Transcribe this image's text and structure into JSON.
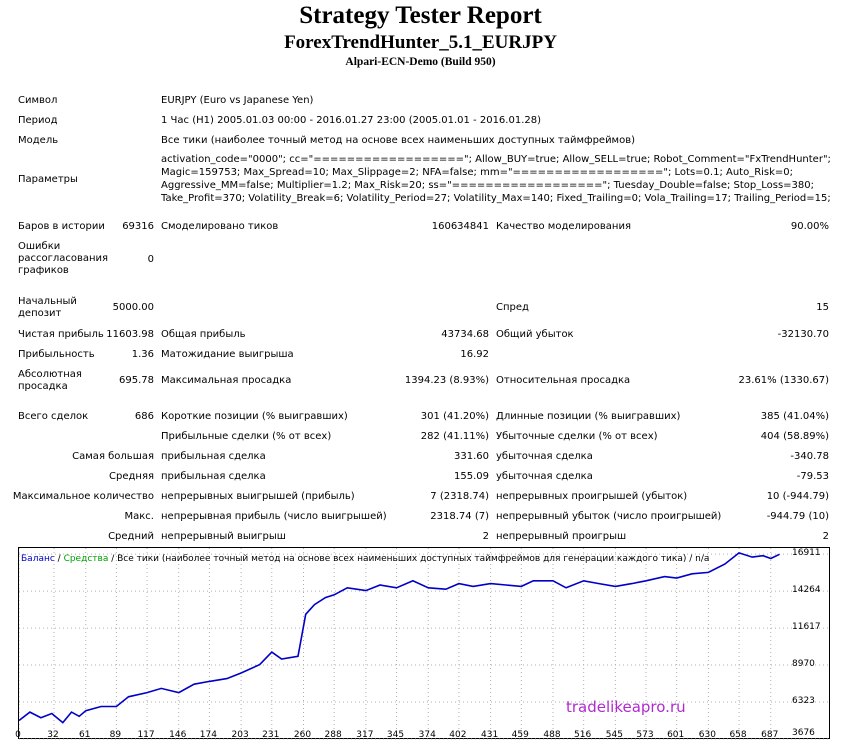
{
  "header": {
    "title": "Strategy Tester Report",
    "expert": "ForexTrendHunter_5.1_EURJPY",
    "server": "Alpari-ECN-Demo (Build 950)"
  },
  "info": {
    "symbol_label": "Символ",
    "symbol_value": "EURJPY (Euro vs Japanese Yen)",
    "period_label": "Период",
    "period_value": "1 Час (H1) 2005.01.03 00:00 - 2016.01.27 23:00 (2005.01.01 - 2016.01.28)",
    "model_label": "Модель",
    "model_value": "Все тики (наиболее точный метод на основе всех наименьших доступных таймфреймов)",
    "params_label": "Параметры",
    "params_lines": [
      "activation_code=\"0000\"; cc=\"==================\"; Allow_BUY=true; Allow_SELL=true; Robot_Comment=\"FxTrendHunter\";",
      "Magic=159753; Max_Spread=10; Max_Slippage=2; NFA=false; mm=\"==================\"; Lots=0.1; Auto_Risk=0;",
      "Aggressive_MM=false; Multiplier=1.2; Max_Risk=20; ss=\"==================\"; Tuesday_Double=false; Stop_Loss=380;",
      "Take_Profit=370; Volatility_Break=6; Volatility_Period=27; Volatility_Max=140; Fixed_Trailing=0; Vola_Trailing=17; Trailing_Period=15;"
    ]
  },
  "stats": {
    "bars_label": "Баров в истории",
    "bars_value": "69316",
    "ticks_label": "Смоделировано тиков",
    "ticks_value": "160634841",
    "quality_label": "Качество моделирования",
    "quality_value": "90.00%",
    "mismatch_label": "Ошибки рассогласования графиков",
    "mismatch_value": "0",
    "deposit_label": "Начальный депозит",
    "deposit_value": "5000.00",
    "spread_label": "Спред",
    "spread_value": "15",
    "net_label": "Чистая прибыль",
    "net_value": "11603.98",
    "gross_profit_label": "Общая прибыль",
    "gross_profit_value": "43734.68",
    "gross_loss_label": "Общий убыток",
    "gross_loss_value": "-32130.70",
    "pf_label": "Прибыльность",
    "pf_value": "1.36",
    "payoff_label": "Матожидание выигрыша",
    "payoff_value": "16.92",
    "abs_dd_label": "Абсолютная просадка",
    "abs_dd_value": "695.78",
    "max_dd_label": "Максимальная просадка",
    "max_dd_value": "1394.23 (8.93%)",
    "rel_dd_label": "Относительная просадка",
    "rel_dd_value": "23.61% (1330.67)",
    "trades_label": "Всего сделок",
    "trades_value": "686",
    "short_label": "Короткие позиции (% выигравших)",
    "short_value": "301 (41.20%)",
    "long_label": "Длинные позиции (% выигравших)",
    "long_value": "385 (41.04%)",
    "profit_trades_label": "Прибыльные сделки (% от всех)",
    "profit_trades_value": "282 (41.11%)",
    "loss_trades_label": "Убыточные сделки (% от всех)",
    "loss_trades_value": "404 (58.89%)",
    "largest_label": "Самая большая",
    "largest_profit_label": "прибыльная сделка",
    "largest_profit_value": "331.60",
    "largest_loss_label": "убыточная сделка",
    "largest_loss_value": "-340.78",
    "average_label": "Средняя",
    "average_profit_label": "прибыльная сделка",
    "average_profit_value": "155.09",
    "average_loss_label": "убыточная сделка",
    "average_loss_value": "-79.53",
    "max_cons_label": "Максимальное количество",
    "max_cons_wins_label": "непрерывных выигрышей (прибыль)",
    "max_cons_wins_value": "7 (2318.74)",
    "max_cons_losses_label": "непрерывных проигрышей (убыток)",
    "max_cons_losses_value": "10 (-944.79)",
    "max_label": "Макс.",
    "max_cons_profit_label": "непрерывная прибыль (число выигрышей)",
    "max_cons_profit_value": "2318.74 (7)",
    "max_cons_loss_label": "непрерывный убыток (число проигрышей)",
    "max_cons_loss_value": "-944.79 (10)",
    "avg_label": "Средний",
    "avg_cons_wins_label": "непрерывный выигрыш",
    "avg_cons_wins_value": "2",
    "avg_cons_losses_label": "непрерывный проигрыш",
    "avg_cons_losses_value": "2"
  },
  "chart_legend": {
    "balance": "Баланс",
    "sep1": " / ",
    "equity": "Средства",
    "sep2": " / ",
    "rest": "Все тики (наиболее точный метод на основе всех наименьших доступных таймфреймов для генерации каждого тика) / n/a"
  },
  "watermark": "tradelikeapro.ru",
  "colors": {
    "balance": "#0000c8",
    "equity": "#00a000",
    "grid": "#b0b0b0",
    "watermark": "#b02ad0"
  },
  "chart_data": {
    "type": "line",
    "x_ticks": [
      "0",
      "32",
      "61",
      "89",
      "117",
      "146",
      "174",
      "203",
      "231",
      "260",
      "288",
      "317",
      "345",
      "374",
      "402",
      "431",
      "459",
      "488",
      "516",
      "545",
      "573",
      "601",
      "630",
      "658",
      "687"
    ],
    "y_ticks": [
      "16911",
      "14264",
      "11617",
      "8970",
      "6323",
      "3676"
    ],
    "xlim": [
      0,
      700
    ],
    "ylim": [
      3676,
      17350
    ],
    "series": [
      {
        "name": "Баланс",
        "x": [
          0,
          10,
          20,
          30,
          40,
          48,
          55,
          61,
          75,
          89,
          100,
          117,
          130,
          146,
          160,
          174,
          190,
          203,
          220,
          231,
          240,
          255,
          262,
          270,
          280,
          288,
          300,
          317,
          330,
          345,
          360,
          374,
          390,
          402,
          415,
          431,
          445,
          459,
          470,
          488,
          500,
          516,
          530,
          545,
          560,
          573,
          590,
          601,
          615,
          630,
          645,
          658,
          670,
          680,
          687,
          695
        ],
        "y": [
          5000,
          5600,
          5200,
          5500,
          4850,
          5600,
          5300,
          5700,
          6000,
          6000,
          6700,
          7000,
          7300,
          7000,
          7600,
          7800,
          8000,
          8400,
          9000,
          9900,
          9400,
          9600,
          12600,
          13300,
          13800,
          14000,
          14500,
          14300,
          14700,
          14500,
          15000,
          14500,
          14400,
          14800,
          14600,
          14800,
          14700,
          14600,
          15000,
          15000,
          14500,
          15000,
          14800,
          14600,
          14800,
          15000,
          15300,
          15200,
          15500,
          15600,
          16200,
          17000,
          16700,
          16800,
          16600,
          16900
        ]
      }
    ]
  }
}
